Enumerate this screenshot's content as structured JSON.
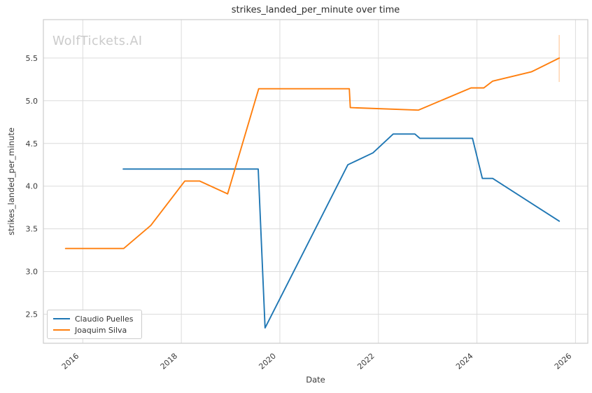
{
  "chart_data": {
    "type": "line",
    "title": "strikes_landed_per_minute over time",
    "xlabel": "Date",
    "ylabel": "strikes_landed_per_minute",
    "watermark": "WolfTickets.AI",
    "xlim": [
      2015.2,
      2026.25
    ],
    "ylim": [
      2.16,
      5.95
    ],
    "xticks": [
      "2016",
      "2018",
      "2020",
      "2022",
      "2024",
      "2026"
    ],
    "yticks": [
      "2.5",
      "3.0",
      "3.5",
      "4.0",
      "4.5",
      "5.0",
      "5.5"
    ],
    "grid": true,
    "legend_position": "lower-left",
    "series": [
      {
        "name": "Claudio Puelles",
        "color": "#1f77b4",
        "points": [
          [
            2016.82,
            4.2
          ],
          [
            2019.56,
            4.2
          ],
          [
            2019.7,
            2.34
          ],
          [
            2021.38,
            4.25
          ],
          [
            2021.89,
            4.39
          ],
          [
            2022.3,
            4.61
          ],
          [
            2022.74,
            4.61
          ],
          [
            2022.84,
            4.56
          ],
          [
            2023.91,
            4.56
          ],
          [
            2024.11,
            4.09
          ],
          [
            2024.32,
            4.09
          ],
          [
            2025.67,
            3.59
          ]
        ]
      },
      {
        "name": "Joaquim Silva",
        "color": "#ff7f0e",
        "points": [
          [
            2015.65,
            3.27
          ],
          [
            2016.83,
            3.27
          ],
          [
            2017.38,
            3.54
          ],
          [
            2018.07,
            4.06
          ],
          [
            2018.37,
            4.06
          ],
          [
            2018.94,
            3.91
          ],
          [
            2019.57,
            5.14
          ],
          [
            2021.41,
            5.14
          ],
          [
            2021.43,
            4.92
          ],
          [
            2022.81,
            4.89
          ],
          [
            2023.88,
            5.15
          ],
          [
            2024.14,
            5.15
          ],
          [
            2024.32,
            5.23
          ],
          [
            2025.11,
            5.34
          ],
          [
            2025.67,
            5.5
          ]
        ],
        "error_bar": {
          "x": 2025.67,
          "low": 5.22,
          "high": 5.77
        }
      }
    ],
    "colors": {
      "grid": "#dcdcdc",
      "spine": "#cccccc",
      "text": "#3a3a3a",
      "watermark": "#cbcbcb",
      "background": "#ffffff"
    }
  }
}
